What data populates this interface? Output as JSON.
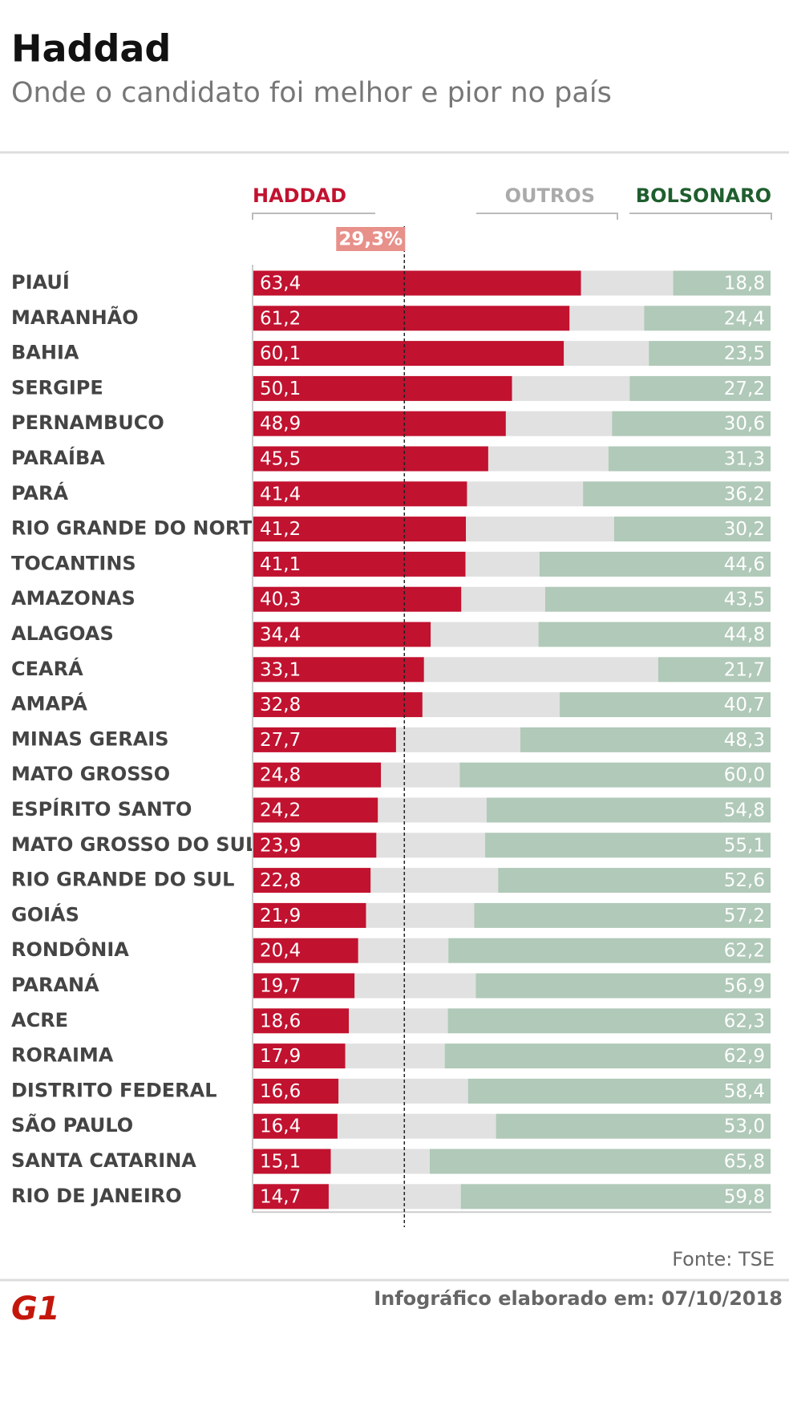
{
  "chart_data": {
    "type": "bar",
    "orientation": "horizontal",
    "stacked": true,
    "title": "Haddad",
    "subtitle": "Onde o candidato foi melhor e pior no país",
    "categories": [
      "PIAUÍ",
      "MARANHÃO",
      "BAHIA",
      "SERGIPE",
      "PERNAMBUCO",
      "PARAÍBA",
      "PARÁ",
      "RIO GRANDE DO NORTE",
      "TOCANTINS",
      "AMAZONAS",
      "ALAGOAS",
      "CEARÁ",
      "AMAPÁ",
      "MINAS GERAIS",
      "MATO GROSSO",
      "ESPÍRITO SANTO",
      "MATO GROSSO DO SUL",
      "RIO GRANDE DO SUL",
      "GOIÁS",
      "RONDÔNIA",
      "PARANÁ",
      "ACRE",
      "RORAIMA",
      "DISTRITO FEDERAL",
      "SÃO PAULO",
      "SANTA CATARINA",
      "RIO DE JANEIRO"
    ],
    "series": [
      {
        "name": "HADDAD",
        "color": "#c1122f",
        "label_color": "#c1122f",
        "values": [
          63.4,
          61.2,
          60.1,
          50.1,
          48.9,
          45.5,
          41.4,
          41.2,
          41.1,
          40.3,
          34.4,
          33.1,
          32.8,
          27.7,
          24.8,
          24.2,
          23.9,
          22.8,
          21.9,
          20.4,
          19.7,
          18.6,
          17.9,
          16.6,
          16.4,
          15.1,
          14.7
        ],
        "value_labels": [
          "63,4",
          "61,2",
          "60,1",
          "50,1",
          "48,9",
          "45,5",
          "41,4",
          "41,2",
          "41,1",
          "40,3",
          "34,4",
          "33,1",
          "32,8",
          "27,7",
          "24,8",
          "24,2",
          "23,9",
          "22,8",
          "21,9",
          "20,4",
          "19,7",
          "18,6",
          "17,9",
          "16,6",
          "16,4",
          "15,1",
          "14,7"
        ]
      },
      {
        "name": "OUTROS",
        "color": "#e1e1e1",
        "label_color": "#aaaaaa",
        "values": [
          17.8,
          14.4,
          16.4,
          22.7,
          20.5,
          23.2,
          22.4,
          28.6,
          14.3,
          16.2,
          20.8,
          45.2,
          26.5,
          24.0,
          15.2,
          21.0,
          21.0,
          24.6,
          20.9,
          17.4,
          23.4,
          19.1,
          19.2,
          25.0,
          30.6,
          19.1,
          25.5
        ]
      },
      {
        "name": "BOLSONARO",
        "color": "#b0c9b8",
        "label_color": "#1f5e2e",
        "values": [
          18.8,
          24.4,
          23.5,
          27.2,
          30.6,
          31.3,
          36.2,
          30.2,
          44.6,
          43.5,
          44.8,
          21.7,
          40.7,
          48.3,
          60.0,
          54.8,
          55.1,
          52.6,
          57.2,
          62.2,
          56.9,
          62.3,
          62.9,
          58.4,
          53.0,
          65.8,
          59.8
        ],
        "value_labels": [
          "18,8",
          "24,4",
          "23,5",
          "27,2",
          "30,6",
          "31,3",
          "36,2",
          "30,2",
          "44,6",
          "43,5",
          "44,8",
          "21,7",
          "40,7",
          "48,3",
          "60,0",
          "54,8",
          "55,1",
          "52,6",
          "57,2",
          "62,2",
          "56,9",
          "62,3",
          "62,9",
          "58,4",
          "53,0",
          "65,8",
          "59,8"
        ]
      }
    ],
    "xlim": [
      0,
      100
    ],
    "reference_line": {
      "value": 29.3,
      "label": "29,3%"
    },
    "source": "Fonte: TSE",
    "note": "Infográfico elaborado em: 07/10/2018",
    "logo": "G1"
  }
}
